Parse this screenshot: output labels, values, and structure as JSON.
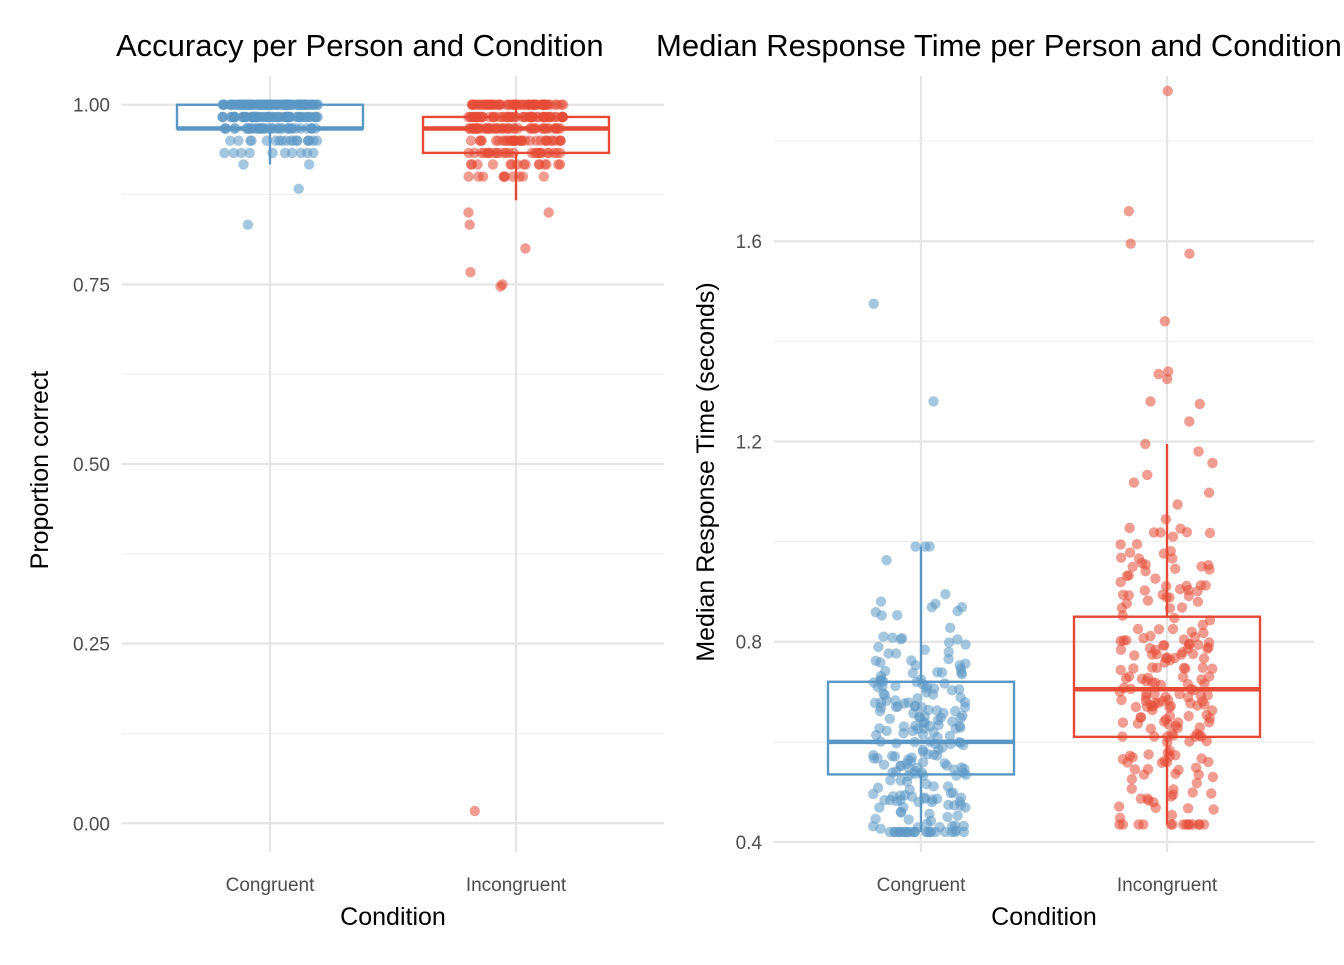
{
  "colors": {
    "congruent": "#5B97C5",
    "incongruent": "#E64A35",
    "grid": "#e5e5e5",
    "text": "#4d4d4d"
  },
  "chart_data": [
    {
      "type": "box",
      "title": "Accuracy per Person and Condition",
      "xlabel": "Condition",
      "ylabel": "Proportion correct",
      "categories": [
        "Congruent",
        "Incongruent"
      ],
      "ylim": [
        -0.04,
        1.04
      ],
      "yticks": [
        0,
        0.25,
        0.5,
        0.75,
        1
      ],
      "ytick_labels": [
        "0.00",
        "0.25",
        "0.50",
        "0.75",
        "1.00"
      ],
      "grid": true,
      "boxes": [
        {
          "category": "Congruent",
          "whisker_low": 0.917,
          "q1": 0.967,
          "median": 0.967,
          "q3": 1.0,
          "whisker_high": 1.0
        },
        {
          "category": "Incongruent",
          "whisker_low": 0.867,
          "q1": 0.933,
          "median": 0.967,
          "q3": 0.983,
          "whisker_high": 1.0
        }
      ],
      "points": [
        {
          "category": "Congruent",
          "y": [
            0.883,
            0.833
          ]
        },
        {
          "category": "Incongruent",
          "y": [
            0.85,
            0.85,
            0.833,
            0.8,
            0.767,
            0.75,
            0.747,
            0.017
          ]
        }
      ]
    },
    {
      "type": "box",
      "title": "Median Response Time per Person and Condition",
      "xlabel": "Condition",
      "ylabel": "Median Response Time (seconds)",
      "categories": [
        "Congruent",
        "Incongruent"
      ],
      "ylim": [
        0.38,
        1.93
      ],
      "yticks": [
        0.4,
        0.8,
        1.2,
        1.6
      ],
      "ytick_labels": [
        "0.4",
        "0.8",
        "1.2",
        "1.6"
      ],
      "grid": true,
      "boxes": [
        {
          "category": "Congruent",
          "whisker_low": 0.42,
          "q1": 0.535,
          "median": 0.6,
          "q3": 0.72,
          "whisker_high": 0.99
        },
        {
          "category": "Incongruent",
          "whisker_low": 0.435,
          "q1": 0.61,
          "median": 0.705,
          "q3": 0.85,
          "whisker_high": 1.195
        }
      ],
      "points": [
        {
          "category": "Congruent",
          "y": [
            1.475,
            1.28
          ]
        },
        {
          "category": "Incongruent",
          "y": [
            1.9,
            1.66,
            1.595,
            1.575,
            1.44,
            1.34,
            1.335,
            1.325,
            1.28,
            1.275,
            1.24
          ]
        }
      ]
    }
  ]
}
